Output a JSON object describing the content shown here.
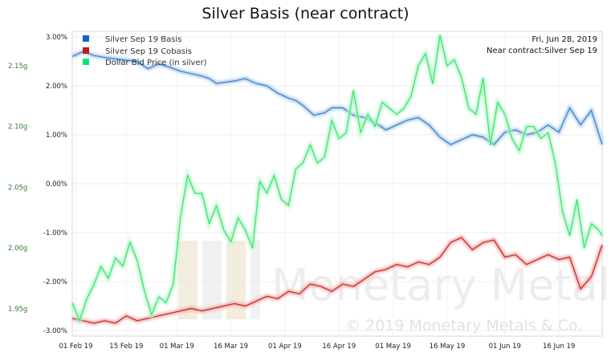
{
  "chart_data": {
    "type": "line",
    "title": "Silver Basis (near contract)",
    "date_label": "Fri, Jun 28, 2019",
    "contract_label": "Near contract:Silver Sep 19",
    "watermark": "© 2019 Monetary Metals & Co.",
    "watermark_brand": "Monetary Metals",
    "x_ticks": [
      "01 Feb 19",
      "15 Feb 19",
      "01 Mar 19",
      "16 Mar 19",
      "01 Apr 19",
      "16 Apr 19",
      "01 May 19",
      "16 May 19",
      "01 Jun 19",
      "16 Jun 19"
    ],
    "right_axis": {
      "ticks": [
        "3.00%",
        "2.00%",
        "1.00%",
        "0.00%",
        "-1.00%",
        "-2.00%",
        "-3.00%"
      ],
      "ylim": [
        -3.0,
        3.0
      ]
    },
    "left_axis": {
      "ticks": [
        "2.15g",
        "2.10g",
        "2.05g",
        "2.00g",
        "1.95g"
      ],
      "ylim": [
        1.9322,
        2.1737
      ]
    },
    "x_range": [
      0,
      147
    ],
    "series": [
      {
        "name": "Silver Sep 19 Basis",
        "axis": "right",
        "color": "#3b82c8",
        "x": [
          0,
          3,
          6,
          9,
          12,
          18,
          21,
          24,
          27,
          30,
          33,
          36,
          38,
          40,
          43,
          45,
          48,
          51,
          54,
          57,
          60,
          62,
          64,
          67,
          70,
          72,
          75,
          78,
          81,
          84,
          87,
          90,
          93,
          96,
          99,
          102,
          105,
          108,
          111,
          114,
          117,
          120,
          123,
          126,
          129,
          132,
          135,
          138,
          141,
          144,
          147
        ],
        "y": [
          2.6,
          2.7,
          2.62,
          2.58,
          2.55,
          2.5,
          2.35,
          2.45,
          2.38,
          2.3,
          2.25,
          2.2,
          2.15,
          2.05,
          2.08,
          2.1,
          2.15,
          2.05,
          2.0,
          1.85,
          1.75,
          1.7,
          1.6,
          1.4,
          1.45,
          1.55,
          1.55,
          1.4,
          1.35,
          1.25,
          1.1,
          1.2,
          1.3,
          1.35,
          1.2,
          0.95,
          0.8,
          0.9,
          1.0,
          0.95,
          0.8,
          1.05,
          1.1,
          1.0,
          1.05,
          1.2,
          1.05,
          1.55,
          1.2,
          1.5,
          0.8
        ]
      },
      {
        "name": "Silver Sep 19 Cobasis",
        "axis": "right",
        "color": "#c62828",
        "x": [
          0,
          3,
          6,
          9,
          12,
          15,
          18,
          21,
          24,
          27,
          30,
          33,
          36,
          39,
          42,
          45,
          48,
          51,
          54,
          57,
          60,
          63,
          66,
          69,
          72,
          75,
          78,
          81,
          84,
          87,
          90,
          93,
          96,
          99,
          102,
          105,
          108,
          111,
          114,
          117,
          120,
          123,
          126,
          129,
          132,
          135,
          138,
          141,
          144,
          147
        ],
        "y": [
          -2.75,
          -2.8,
          -2.85,
          -2.8,
          -2.85,
          -2.7,
          -2.8,
          -2.75,
          -2.7,
          -2.65,
          -2.6,
          -2.55,
          -2.6,
          -2.55,
          -2.5,
          -2.45,
          -2.5,
          -2.4,
          -2.3,
          -2.35,
          -2.2,
          -2.25,
          -2.05,
          -2.1,
          -2.2,
          -2.05,
          -2.1,
          -1.95,
          -1.8,
          -1.75,
          -1.65,
          -1.7,
          -1.6,
          -1.65,
          -1.5,
          -1.2,
          -1.1,
          -1.35,
          -1.2,
          -1.15,
          -1.5,
          -1.45,
          -1.65,
          -1.55,
          -1.45,
          -1.55,
          -1.5,
          -2.15,
          -1.9,
          -1.25
        ]
      },
      {
        "name": "Dollar Bid Price (in silver)",
        "axis": "left",
        "color": "#2ee86a",
        "x": [
          0,
          2,
          4,
          6,
          8,
          10,
          12,
          14,
          16,
          18,
          20,
          22,
          24,
          26,
          28,
          30,
          32,
          34,
          36,
          38,
          40,
          42,
          44,
          46,
          48,
          50,
          52,
          54,
          56,
          58,
          60,
          62,
          64,
          66,
          68,
          70,
          72,
          74,
          76,
          78,
          80,
          82,
          84,
          86,
          88,
          90,
          92,
          94,
          96,
          98,
          100,
          102,
          104,
          106,
          108,
          110,
          112,
          114,
          116,
          118,
          120,
          122,
          124,
          126,
          128,
          130,
          132,
          134,
          136,
          138,
          140,
          142,
          144,
          146,
          147
        ],
        "y": [
          1.955,
          1.94,
          1.958,
          1.97,
          1.985,
          1.975,
          1.992,
          1.985,
          2.005,
          1.99,
          1.965,
          1.945,
          1.96,
          1.955,
          1.97,
          2.025,
          2.06,
          2.045,
          2.045,
          2.02,
          2.035,
          2.015,
          2.005,
          2.025,
          2.015,
          2.0,
          2.055,
          2.045,
          2.06,
          2.04,
          2.035,
          2.065,
          2.07,
          2.085,
          2.07,
          2.075,
          2.105,
          2.09,
          2.095,
          2.13,
          2.095,
          2.11,
          2.1,
          2.12,
          2.115,
          2.11,
          2.115,
          2.125,
          2.15,
          2.16,
          2.135,
          2.175,
          2.15,
          2.155,
          2.14,
          2.115,
          2.11,
          2.14,
          2.085,
          2.12,
          2.11,
          2.09,
          2.08,
          2.1,
          2.1,
          2.09,
          2.095,
          2.07,
          2.03,
          2.01,
          2.04,
          2.0,
          2.02,
          2.015,
          2.01
        ]
      }
    ]
  }
}
